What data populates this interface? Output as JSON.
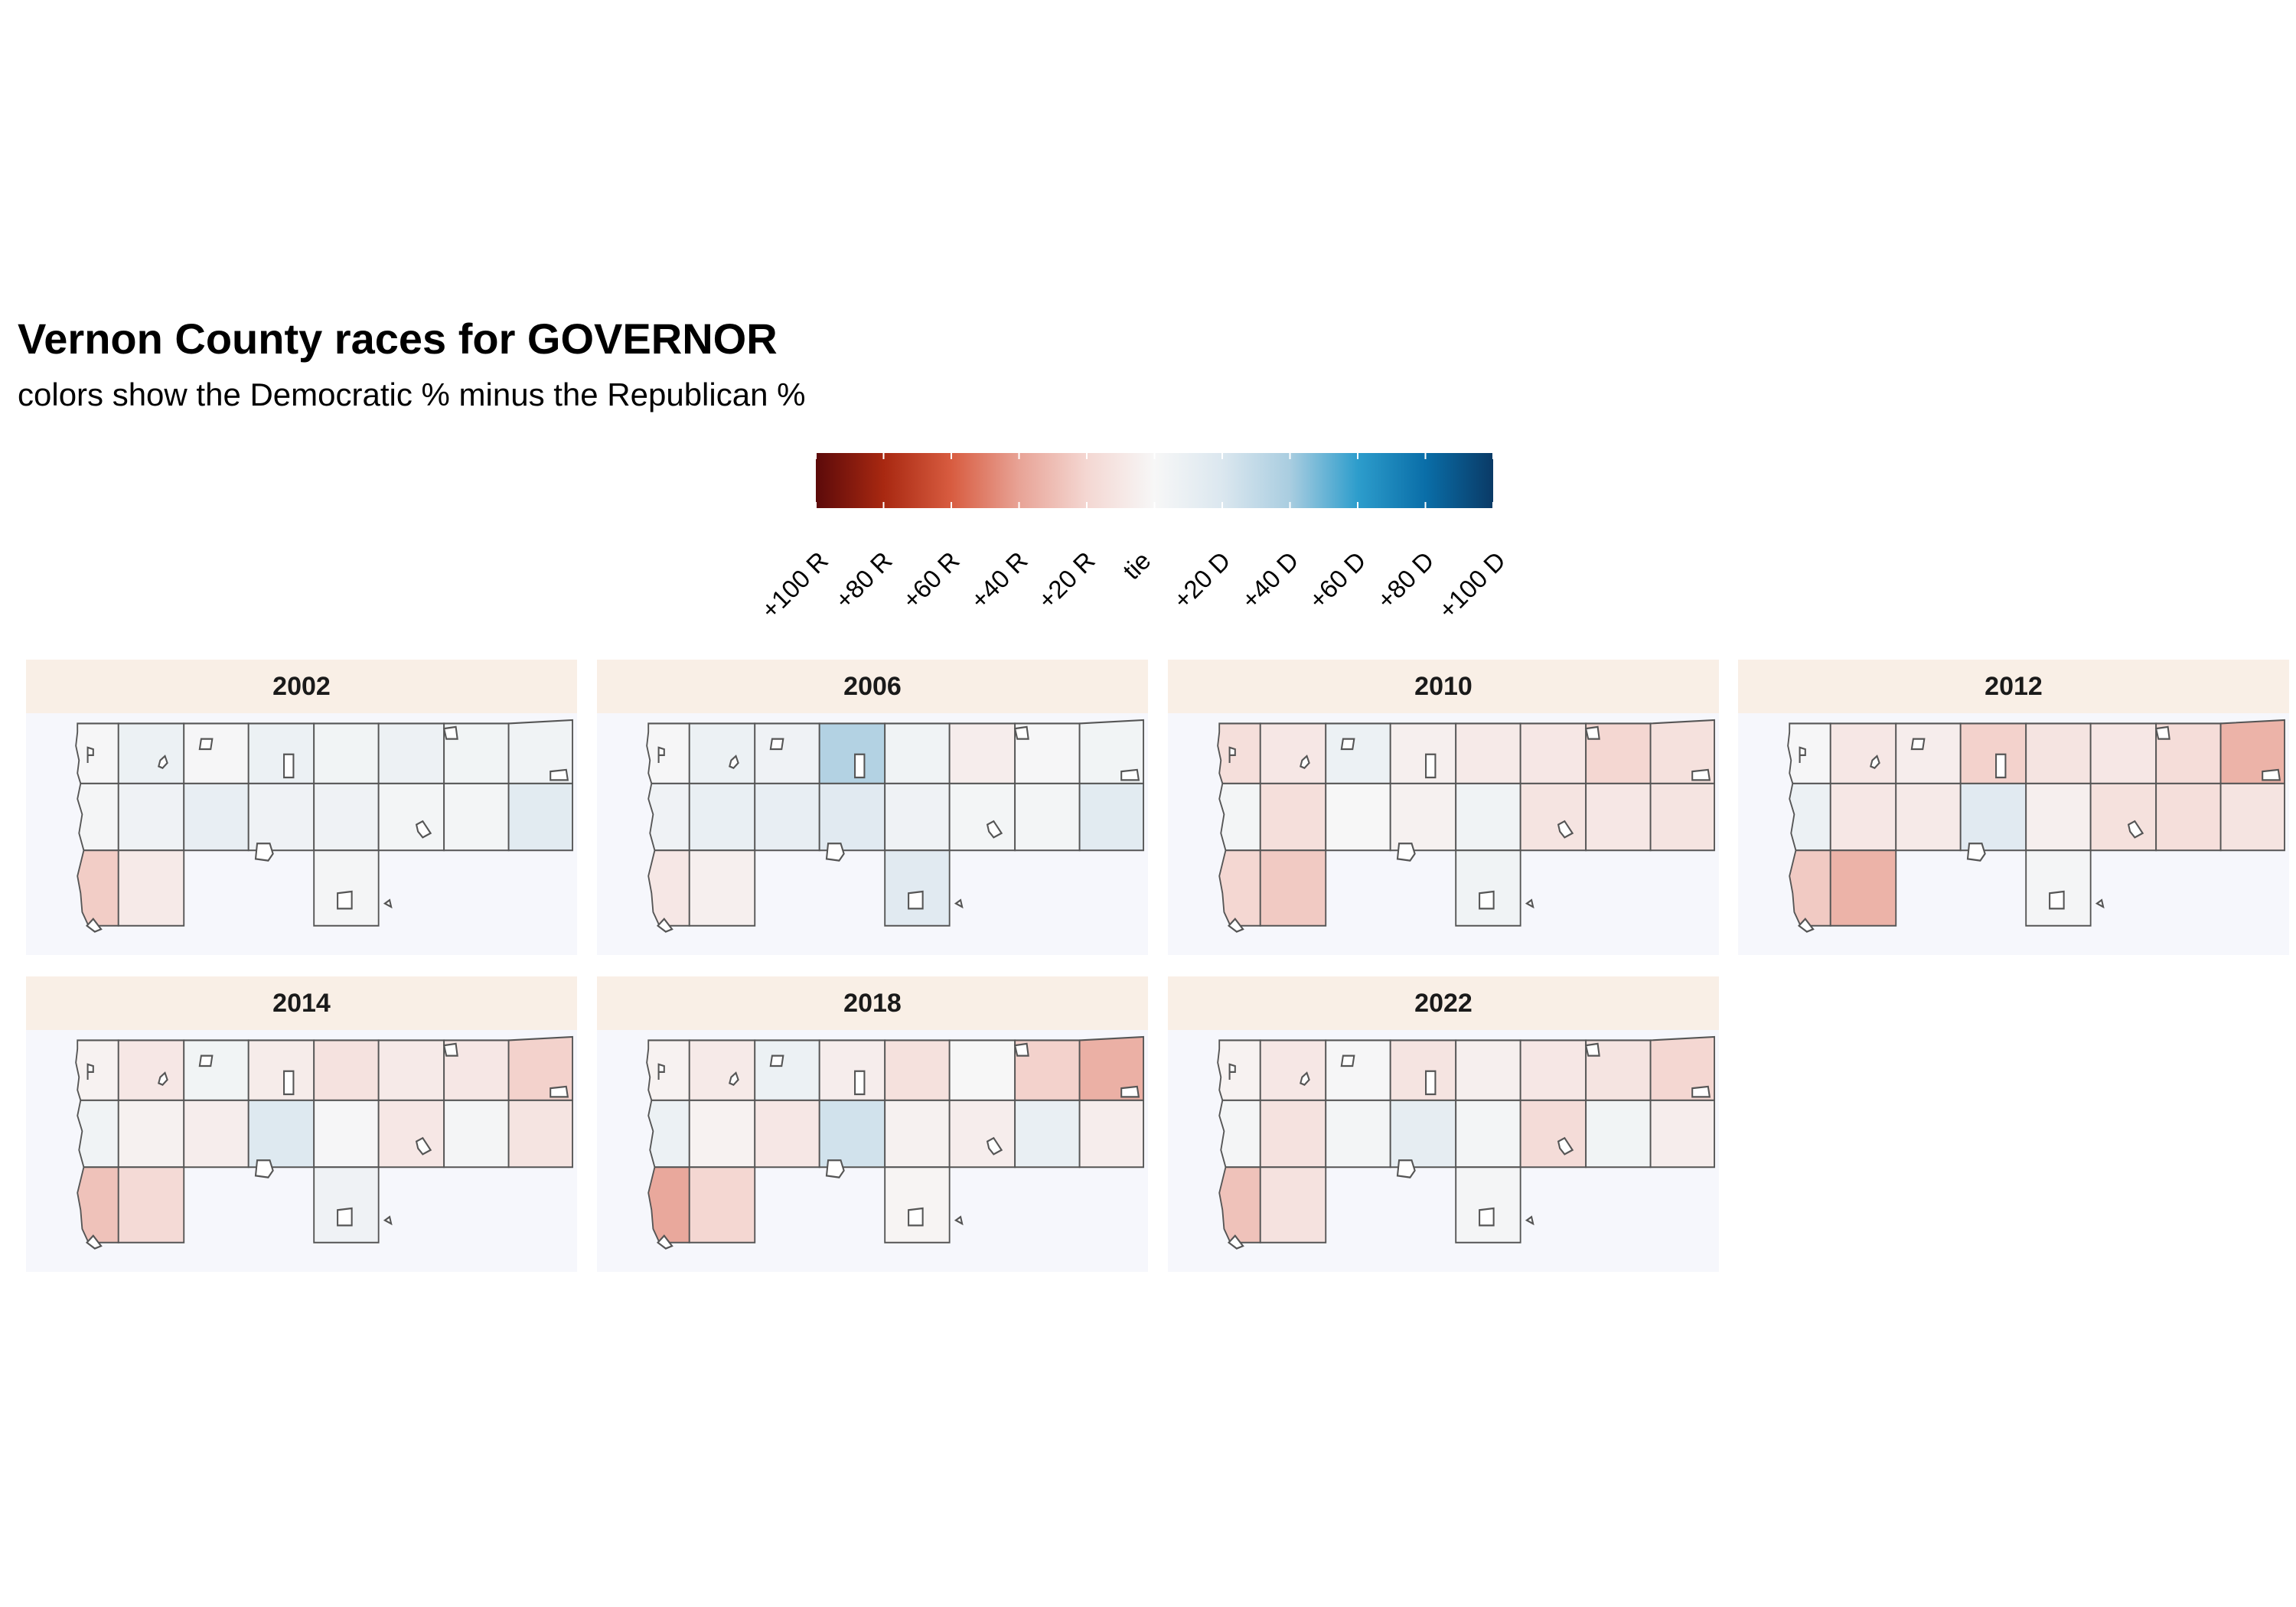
{
  "title": "Vernon County races for GOVERNOR",
  "subtitle": "colors show the Democratic % minus the Republican %",
  "legend": {
    "labels": [
      "+100 R",
      "+80 R",
      "+60 R",
      "+40 R",
      "+20 R",
      "tie",
      "+20 D",
      "+40 D",
      "+60 D",
      "+80 D",
      "+100 D"
    ],
    "values": [
      -100,
      -80,
      -60,
      -40,
      -20,
      0,
      20,
      40,
      60,
      80,
      100
    ],
    "colors": [
      "#5c0a0a",
      "#a82811",
      "#d85c40",
      "#e8a396",
      "#f4d7d2",
      "#f7f7f7",
      "#dbe7ef",
      "#a9cde0",
      "#2d9dcc",
      "#0a6ea8",
      "#0a3a66"
    ]
  },
  "panels": [
    {
      "year": "2002",
      "margins": [
        1,
        8,
        1,
        8,
        4,
        7,
        4,
        5,
        2,
        6,
        11,
        6,
        6,
        3,
        3,
        15,
        -24,
        -8,
        2
      ]
    },
    {
      "year": "2006",
      "margins": [
        1,
        8,
        6,
        36,
        5,
        -6,
        1,
        4,
        6,
        10,
        11,
        16,
        6,
        3,
        3,
        15,
        -10,
        -5,
        16
      ]
    },
    {
      "year": "2010",
      "margins": [
        -15,
        -10,
        8,
        -5,
        -8,
        -10,
        -20,
        -14,
        3,
        -15,
        0,
        -4,
        5,
        -12,
        -10,
        -12,
        -20,
        -25,
        5
      ]
    },
    {
      "year": "2012",
      "margins": [
        1,
        -10,
        -6,
        -22,
        -12,
        -10,
        -16,
        -34,
        8,
        -10,
        -8,
        16,
        -5,
        -14,
        -15,
        -12,
        -25,
        -34,
        2
      ]
    },
    {
      "year": "2014",
      "margins": [
        -3,
        -10,
        4,
        -7,
        -13,
        -8,
        -10,
        -22,
        5,
        -4,
        -6,
        18,
        1,
        -10,
        2,
        -12,
        -28,
        -18,
        6
      ]
    },
    {
      "year": "2018",
      "margins": [
        -3,
        -8,
        8,
        -6,
        -14,
        0,
        -22,
        -35,
        8,
        -3,
        -10,
        24,
        -4,
        -6,
        10,
        -6,
        -38,
        -20,
        -2
      ]
    },
    {
      "year": "2022",
      "margins": [
        -3,
        -10,
        1,
        -12,
        -5,
        -10,
        -12,
        -20,
        2,
        -13,
        3,
        12,
        3,
        -17,
        4,
        -6,
        -28,
        -13,
        2
      ]
    }
  ]
}
